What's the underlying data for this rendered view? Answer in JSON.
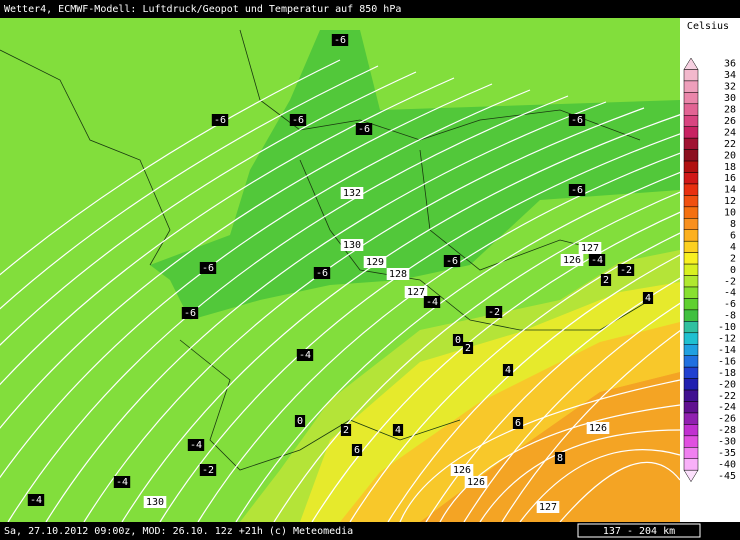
{
  "header": {
    "title": "Wetter4, ECMWF-Modell: Luftdruck/Geopot und Temperatur auf 850 hPa"
  },
  "footer": {
    "text": "Sa, 27.10.2012 09:00z, MOD: 26.10. 12z +21h (c) Meteomedia",
    "scale": "137 - 204 km"
  },
  "legend": {
    "title": "Celsius",
    "entries": [
      {
        "label": "36",
        "color": "#f6d0e0"
      },
      {
        "label": "34",
        "color": "#f2b8cc"
      },
      {
        "label": "32",
        "color": "#ee9fbb"
      },
      {
        "label": "30",
        "color": "#ea86aa"
      },
      {
        "label": "28",
        "color": "#e26494"
      },
      {
        "label": "26",
        "color": "#d84480"
      },
      {
        "label": "24",
        "color": "#c82262"
      },
      {
        "label": "22",
        "color": "#a01232"
      },
      {
        "label": "20",
        "color": "#8c1020"
      },
      {
        "label": "18",
        "color": "#b01010"
      },
      {
        "label": "16",
        "color": "#d01818"
      },
      {
        "label": "14",
        "color": "#e83010"
      },
      {
        "label": "12",
        "color": "#f05010"
      },
      {
        "label": "10",
        "color": "#f47010"
      },
      {
        "label": "8",
        "color": "#f89020"
      },
      {
        "label": "6",
        "color": "#fcb020"
      },
      {
        "label": "4",
        "color": "#fcd020"
      },
      {
        "label": "2",
        "color": "#f8f020"
      },
      {
        "label": "0",
        "color": "#d8f020"
      },
      {
        "label": "-2",
        "color": "#b0e830"
      },
      {
        "label": "-4",
        "color": "#88e030"
      },
      {
        "label": "-6",
        "color": "#60d030"
      },
      {
        "label": "-8",
        "color": "#40c040"
      },
      {
        "label": "-10",
        "color": "#30c0a0"
      },
      {
        "label": "-12",
        "color": "#20c0d0"
      },
      {
        "label": "-14",
        "color": "#20a0e0"
      },
      {
        "label": "-16",
        "color": "#2070e0"
      },
      {
        "label": "-18",
        "color": "#2040d0"
      },
      {
        "label": "-20",
        "color": "#2020b0"
      },
      {
        "label": "-22",
        "color": "#401090"
      },
      {
        "label": "-24",
        "color": "#601090"
      },
      {
        "label": "-26",
        "color": "#9020b0"
      },
      {
        "label": "-28",
        "color": "#c030d0"
      },
      {
        "label": "-30",
        "color": "#e050e0"
      },
      {
        "label": "-35",
        "color": "#f080f0"
      },
      {
        "label": "-40",
        "color": "#f8b0f8"
      },
      {
        "label": "-45",
        "color": "#fce0fc"
      }
    ]
  },
  "map": {
    "labels": [
      "-6",
      "-6",
      "-6",
      "-6",
      "-6",
      "-6",
      "132",
      "130",
      "129",
      "128",
      "127",
      "126",
      "-6",
      "-6",
      "-6",
      "-4",
      "-2",
      "127",
      "-4",
      "-2",
      "-6",
      "2",
      "4",
      "-4",
      "0",
      "2",
      "4",
      "0",
      "2",
      "4",
      "6",
      "126",
      "-4",
      "-2",
      "6",
      "8",
      "126",
      "126",
      "-4",
      "-4",
      "130",
      "127"
    ]
  }
}
